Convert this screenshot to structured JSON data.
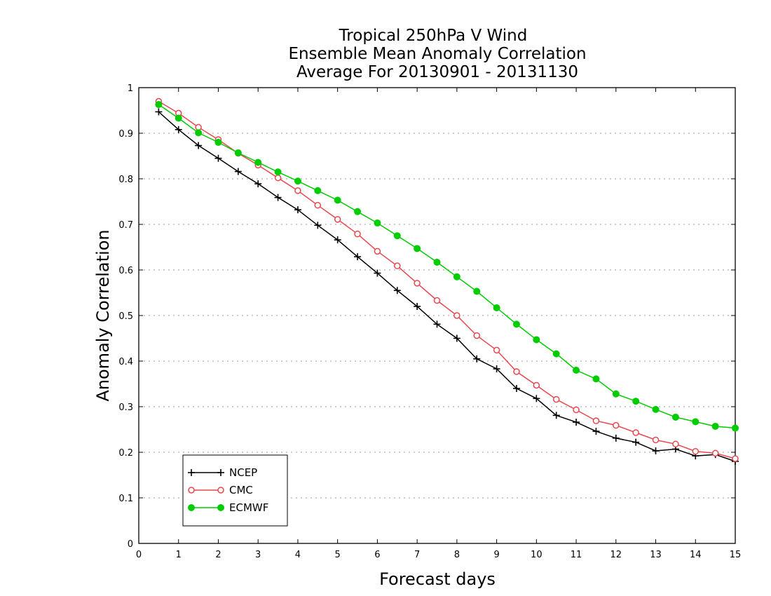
{
  "chart_data": {
    "type": "line",
    "title_lines": [
      "Tropical 250hPa V Wind",
      "Ensemble Mean Anomaly Correlation",
      "Average For 20130901 - 20131130"
    ],
    "xlabel": "Forecast days",
    "ylabel": "Anomaly Correlation",
    "xlim": [
      0,
      15
    ],
    "ylim": [
      0,
      1
    ],
    "x_ticks": [
      "0",
      "1",
      "2",
      "3",
      "4",
      "5",
      "6",
      "7",
      "8",
      "9",
      "10",
      "11",
      "12",
      "13",
      "14",
      "15"
    ],
    "y_ticks": [
      "0",
      "0.1",
      "0.2",
      "0.3",
      "0.4",
      "0.5",
      "0.6",
      "0.7",
      "0.8",
      "0.9",
      "1"
    ],
    "grid": "horizontal dotted",
    "legend_position": "bottom-left",
    "x": [
      0.5,
      1,
      1.5,
      2,
      2.5,
      3,
      3.5,
      4,
      4.5,
      5,
      5.5,
      6,
      6.5,
      7,
      7.5,
      8,
      8.5,
      9,
      9.5,
      10,
      10.5,
      11,
      11.5,
      12,
      12.5,
      13,
      13.5,
      14,
      14.5,
      15
    ],
    "series": [
      {
        "name": "NCEP",
        "color": "#000000",
        "marker": "plus",
        "values": [
          0.947,
          0.908,
          0.873,
          0.845,
          0.816,
          0.789,
          0.759,
          0.732,
          0.698,
          0.666,
          0.629,
          0.593,
          0.555,
          0.52,
          0.481,
          0.45,
          0.405,
          0.383,
          0.34,
          0.318,
          0.281,
          0.266,
          0.246,
          0.231,
          0.222,
          0.203,
          0.207,
          0.192,
          0.195,
          0.18
        ]
      },
      {
        "name": "CMC",
        "color": "#e8474e",
        "marker": "open-circle",
        "values": [
          0.97,
          0.944,
          0.913,
          0.886,
          0.856,
          0.83,
          0.802,
          0.774,
          0.742,
          0.711,
          0.679,
          0.641,
          0.609,
          0.571,
          0.533,
          0.5,
          0.456,
          0.424,
          0.377,
          0.347,
          0.316,
          0.293,
          0.269,
          0.259,
          0.243,
          0.227,
          0.218,
          0.202,
          0.198,
          0.186
        ]
      },
      {
        "name": "ECMWF",
        "color": "#00cc00",
        "marker": "filled-circle",
        "values": [
          0.963,
          0.933,
          0.901,
          0.88,
          0.857,
          0.836,
          0.815,
          0.795,
          0.774,
          0.753,
          0.728,
          0.703,
          0.675,
          0.647,
          0.617,
          0.585,
          0.553,
          0.517,
          0.481,
          0.447,
          0.416,
          0.38,
          0.361,
          0.328,
          0.312,
          0.294,
          0.277,
          0.267,
          0.257,
          0.253
        ]
      }
    ]
  }
}
